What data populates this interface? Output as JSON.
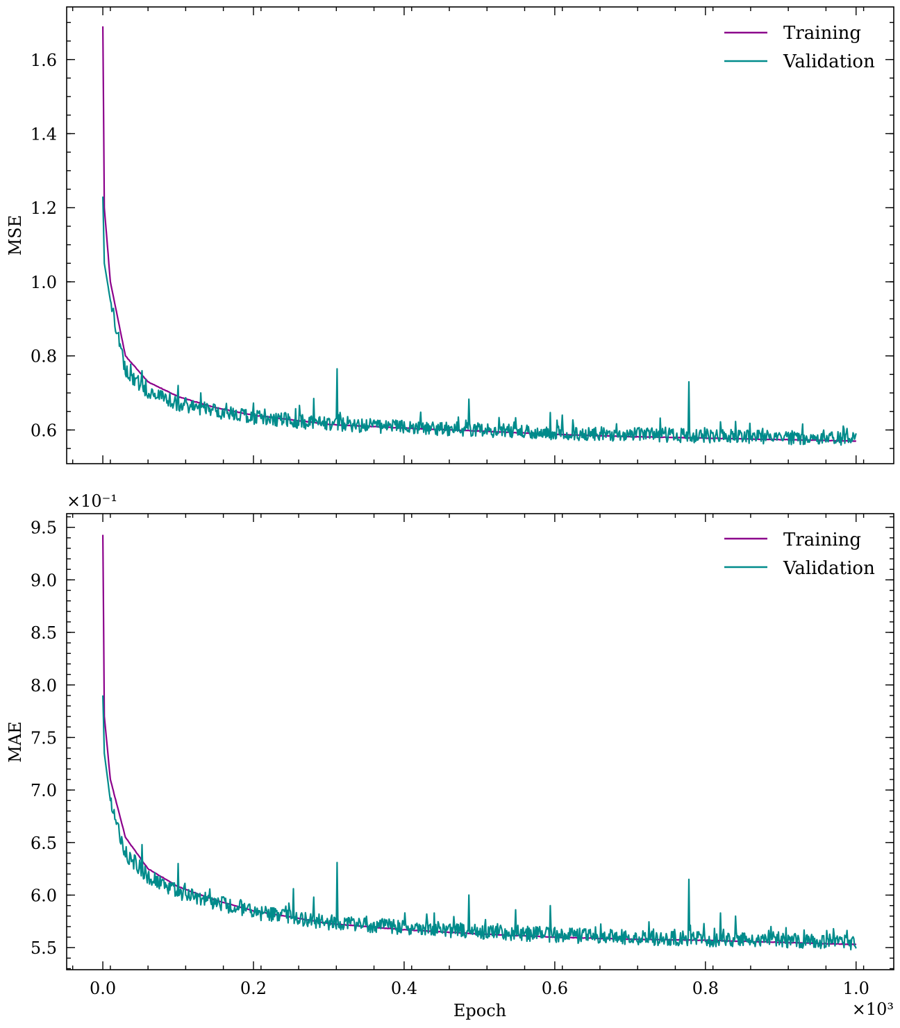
{
  "colors": {
    "training": "#8b008b",
    "validation": "#008b8b"
  },
  "chart_data": [
    {
      "type": "line",
      "panel": "top",
      "title": "",
      "xlabel": "",
      "ylabel": "MSE",
      "xlim": [
        -0.048,
        1.05
      ],
      "ylim": [
        0.509,
        1.742
      ],
      "x_scale_note": "",
      "y_multiplier": "",
      "xticks": [
        0.0,
        0.2,
        0.4,
        0.6,
        0.8,
        1.0
      ],
      "xtick_labels": [],
      "yticks": [
        0.6,
        0.8,
        1.0,
        1.2,
        1.4,
        1.6
      ],
      "ytick_labels": [
        "0.6",
        "0.8",
        "1.0",
        "1.2",
        "1.4",
        "1.6"
      ],
      "legend": {
        "position": "top-right",
        "entries": [
          "Training",
          "Validation"
        ]
      },
      "grid": false,
      "series": [
        {
          "name": "Training",
          "model": {
            "start": 1.69,
            "asymptote": 0.57,
            "points": [
              [
                0.0,
                1.69
              ],
              [
                0.002,
                1.2
              ],
              [
                0.01,
                1.0
              ],
              [
                0.03,
                0.8
              ],
              [
                0.06,
                0.73
              ],
              [
                0.1,
                0.69
              ],
              [
                0.15,
                0.66
              ],
              [
                0.2,
                0.64
              ],
              [
                0.3,
                0.615
              ],
              [
                0.4,
                0.605
              ],
              [
                0.5,
                0.597
              ],
              [
                0.6,
                0.588
              ],
              [
                0.7,
                0.582
              ],
              [
                0.8,
                0.578
              ],
              [
                0.9,
                0.574
              ],
              [
                1.0,
                0.57
              ]
            ]
          }
        },
        {
          "name": "Validation",
          "model": {
            "start": 1.23,
            "noise": 0.012,
            "spikes": [
              [
                0.052,
                0.76
              ],
              [
                0.1,
                0.72
              ],
              [
                0.13,
                0.7
              ],
              [
                0.28,
                0.685
              ],
              [
                0.311,
                0.765
              ],
              [
                0.486,
                0.683
              ],
              [
                0.548,
                0.633
              ],
              [
                0.594,
                0.647
              ],
              [
                0.61,
                0.64
              ],
              [
                0.74,
                0.632
              ],
              [
                0.778,
                0.73
              ],
              [
                0.82,
                0.622
              ],
              [
                0.84,
                0.623
              ]
            ],
            "points": [
              [
                0.0,
                1.23
              ],
              [
                0.002,
                1.05
              ],
              [
                0.01,
                0.95
              ],
              [
                0.03,
                0.76
              ],
              [
                0.06,
                0.7
              ],
              [
                0.1,
                0.67
              ],
              [
                0.15,
                0.65
              ],
              [
                0.2,
                0.635
              ],
              [
                0.3,
                0.615
              ],
              [
                0.4,
                0.607
              ],
              [
                0.5,
                0.6
              ],
              [
                0.6,
                0.592
              ],
              [
                0.7,
                0.588
              ],
              [
                0.8,
                0.584
              ],
              [
                0.9,
                0.58
              ],
              [
                1.0,
                0.577
              ]
            ]
          }
        }
      ]
    },
    {
      "type": "line",
      "panel": "bottom",
      "title": "",
      "xlabel": "Epoch",
      "ylabel": "MAE",
      "xlim": [
        -0.048,
        1.05
      ],
      "ylim": [
        5.29,
        9.63
      ],
      "x_scale_note": "×10³",
      "y_multiplier": "×10⁻¹",
      "xticks": [
        0.0,
        0.2,
        0.4,
        0.6,
        0.8,
        1.0
      ],
      "xtick_labels": [
        "0.0",
        "0.2",
        "0.4",
        "0.6",
        "0.8",
        "1.0"
      ],
      "yticks": [
        5.5,
        6.0,
        6.5,
        7.0,
        7.5,
        8.0,
        8.5,
        9.0,
        9.5
      ],
      "ytick_labels": [
        "5.5",
        "6.0",
        "6.5",
        "7.0",
        "7.5",
        "8.0",
        "8.5",
        "9.0",
        "9.5"
      ],
      "legend": {
        "position": "top-right",
        "entries": [
          "Training",
          "Validation"
        ]
      },
      "grid": false,
      "series": [
        {
          "name": "Training",
          "model": {
            "start": 9.43,
            "asymptote": 5.53,
            "points": [
              [
                0.0,
                9.43
              ],
              [
                0.002,
                7.7
              ],
              [
                0.01,
                7.1
              ],
              [
                0.03,
                6.55
              ],
              [
                0.06,
                6.25
              ],
              [
                0.1,
                6.08
              ],
              [
                0.15,
                5.95
              ],
              [
                0.2,
                5.85
              ],
              [
                0.3,
                5.73
              ],
              [
                0.4,
                5.67
              ],
              [
                0.5,
                5.63
              ],
              [
                0.6,
                5.6
              ],
              [
                0.7,
                5.58
              ],
              [
                0.8,
                5.57
              ],
              [
                0.9,
                5.55
              ],
              [
                1.0,
                5.53
              ]
            ]
          }
        },
        {
          "name": "Validation",
          "model": {
            "start": 7.9,
            "noise": 0.045,
            "spikes": [
              [
                0.052,
                6.48
              ],
              [
                0.1,
                6.3
              ],
              [
                0.253,
                6.06
              ],
              [
                0.28,
                5.98
              ],
              [
                0.311,
                6.31
              ],
              [
                0.43,
                5.82
              ],
              [
                0.44,
                5.83
              ],
              [
                0.486,
                6.0
              ],
              [
                0.548,
                5.86
              ],
              [
                0.594,
                5.9
              ],
              [
                0.778,
                6.15
              ],
              [
                0.82,
                5.83
              ],
              [
                0.84,
                5.8
              ],
              [
                0.97,
                5.68
              ]
            ],
            "points": [
              [
                0.0,
                7.9
              ],
              [
                0.002,
                7.35
              ],
              [
                0.01,
                6.9
              ],
              [
                0.03,
                6.4
              ],
              [
                0.06,
                6.18
              ],
              [
                0.1,
                6.03
              ],
              [
                0.15,
                5.93
              ],
              [
                0.2,
                5.84
              ],
              [
                0.3,
                5.74
              ],
              [
                0.4,
                5.69
              ],
              [
                0.5,
                5.65
              ],
              [
                0.6,
                5.62
              ],
              [
                0.7,
                5.6
              ],
              [
                0.8,
                5.58
              ],
              [
                0.9,
                5.57
              ],
              [
                1.0,
                5.55
              ]
            ]
          }
        }
      ]
    }
  ]
}
